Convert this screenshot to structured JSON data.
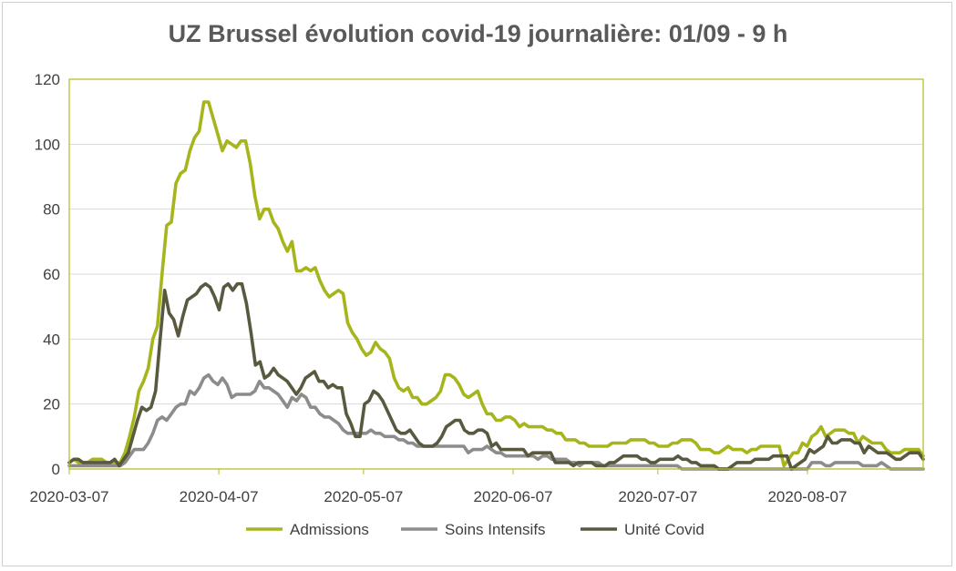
{
  "chart_data": {
    "type": "line",
    "title": "UZ Brussel évolution covid-19 journalière: 01/09 - 9 h",
    "xlabel": "",
    "ylabel": "",
    "ylim": [
      0,
      120
    ],
    "yticks": [
      0,
      20,
      40,
      60,
      80,
      100,
      120
    ],
    "xticks": [
      "2020-03-07",
      "2020-04-07",
      "2020-05-07",
      "2020-06-07",
      "2020-07-07",
      "2020-08-07"
    ],
    "x_start": "2020-03-07",
    "x_end": "2020-08-31",
    "grid": true,
    "legend_position": "bottom",
    "series": [
      {
        "name": "Admissions",
        "color": "#a7b51d",
        "values": [
          2,
          3,
          2,
          2,
          2,
          3,
          3,
          3,
          2,
          2,
          2,
          2,
          5,
          10,
          16,
          24,
          27,
          31,
          40,
          44,
          60,
          75,
          76,
          88,
          91,
          92,
          98,
          102,
          104,
          113,
          113,
          108,
          103,
          98,
          101,
          100,
          99,
          101,
          101,
          94,
          84,
          77,
          80,
          80,
          76,
          74,
          70,
          67,
          70,
          61,
          61,
          62,
          61,
          62,
          58,
          55,
          53,
          54,
          55,
          54,
          45,
          42,
          40,
          37,
          35,
          36,
          39,
          37,
          36,
          34,
          28,
          25,
          24,
          25,
          22,
          22,
          20,
          20,
          21,
          22,
          24,
          29,
          29,
          28,
          26,
          23,
          22,
          23,
          24,
          20,
          17,
          17,
          15,
          15,
          16,
          16,
          15,
          13,
          14,
          13,
          13,
          13,
          13,
          12,
          12,
          11,
          11,
          9,
          9,
          9,
          8,
          8,
          7,
          7,
          7,
          7,
          7,
          8,
          8,
          8,
          8,
          9,
          9,
          9,
          9,
          8,
          8,
          7,
          7,
          7,
          8,
          8,
          9,
          9,
          9,
          8,
          6,
          6,
          6,
          5,
          5,
          6,
          7,
          6,
          6,
          6,
          5,
          6,
          6,
          7,
          7,
          7,
          7,
          7,
          1,
          3,
          5,
          5,
          8,
          7,
          10,
          11,
          13,
          10,
          11,
          12,
          12,
          12,
          11,
          11,
          8,
          10,
          9,
          8,
          8,
          8,
          6,
          5,
          5,
          5,
          6,
          6,
          6,
          6,
          4
        ]
      },
      {
        "name": "Soins Intensifs",
        "color": "#8c8c8c",
        "values": [
          1,
          1,
          1,
          1,
          1,
          1,
          1,
          1,
          1,
          1,
          1,
          1,
          2,
          4,
          6,
          6,
          6,
          8,
          11,
          15,
          16,
          15,
          17,
          19,
          20,
          20,
          24,
          23,
          25,
          28,
          29,
          27,
          26,
          28,
          26,
          22,
          23,
          23,
          23,
          23,
          24,
          27,
          25,
          25,
          24,
          23,
          21,
          19,
          22,
          21,
          23,
          22,
          19,
          19,
          17,
          16,
          16,
          15,
          14,
          12,
          11,
          11,
          11,
          11,
          11,
          12,
          11,
          11,
          10,
          10,
          10,
          9,
          9,
          8,
          8,
          7,
          7,
          7,
          7,
          7,
          7,
          7,
          7,
          7,
          7,
          7,
          5,
          6,
          6,
          6,
          7,
          6,
          5,
          5,
          4,
          4,
          4,
          4,
          4,
          4,
          4,
          3,
          4,
          4,
          3,
          3,
          3,
          3,
          2,
          2,
          1,
          2,
          2,
          2,
          2,
          1,
          1,
          1,
          1,
          1,
          1,
          1,
          1,
          1,
          1,
          1,
          1,
          1,
          1,
          1,
          1,
          1,
          0,
          0,
          0,
          0,
          0,
          0,
          0,
          0,
          0,
          0,
          0,
          0,
          0,
          0,
          0,
          0,
          0,
          0,
          0,
          0,
          0,
          0,
          0,
          0,
          0,
          0,
          0,
          0,
          2,
          2,
          2,
          1,
          1,
          2,
          2,
          2,
          2,
          2,
          2,
          1,
          1,
          1,
          1,
          2,
          1,
          0,
          0,
          0,
          0,
          0,
          0,
          0,
          0
        ]
      },
      {
        "name": "Unité Covid",
        "color": "#59593f",
        "values": [
          2,
          3,
          3,
          2,
          2,
          2,
          2,
          2,
          2,
          2,
          3,
          1,
          3,
          5,
          10,
          15,
          19,
          18,
          19,
          24,
          40,
          55,
          48,
          46,
          41,
          47,
          52,
          53,
          54,
          56,
          57,
          56,
          53,
          49,
          56,
          57,
          55,
          57,
          57,
          51,
          42,
          32,
          33,
          28,
          29,
          31,
          29,
          28,
          27,
          25,
          23,
          25,
          28,
          29,
          30,
          27,
          27,
          25,
          26,
          25,
          25,
          17,
          14,
          10,
          10,
          20,
          21,
          24,
          23,
          21,
          18,
          15,
          12,
          11,
          11,
          12,
          10,
          8,
          7,
          7,
          7,
          8,
          10,
          13,
          14,
          15,
          15,
          12,
          11,
          11,
          12,
          12,
          11,
          7,
          8,
          6,
          6,
          6,
          6,
          6,
          6,
          4,
          5,
          5,
          5,
          5,
          5,
          2,
          2,
          2,
          2,
          1,
          2,
          2,
          2,
          2,
          1,
          1,
          1,
          2,
          2,
          3,
          4,
          4,
          4,
          4,
          3,
          3,
          2,
          2,
          3,
          3,
          3,
          3,
          4,
          3,
          3,
          2,
          2,
          1,
          1,
          1,
          1,
          0,
          0,
          0,
          1,
          2,
          2,
          2,
          2,
          3,
          3,
          3,
          3,
          4,
          4,
          4,
          4,
          0,
          1,
          2,
          3,
          6,
          5,
          6,
          7,
          10,
          8,
          8,
          9,
          9,
          9,
          8,
          8,
          5,
          7,
          6,
          5,
          5,
          5,
          4,
          3,
          3,
          4,
          5,
          5,
          5,
          3
        ]
      }
    ]
  }
}
